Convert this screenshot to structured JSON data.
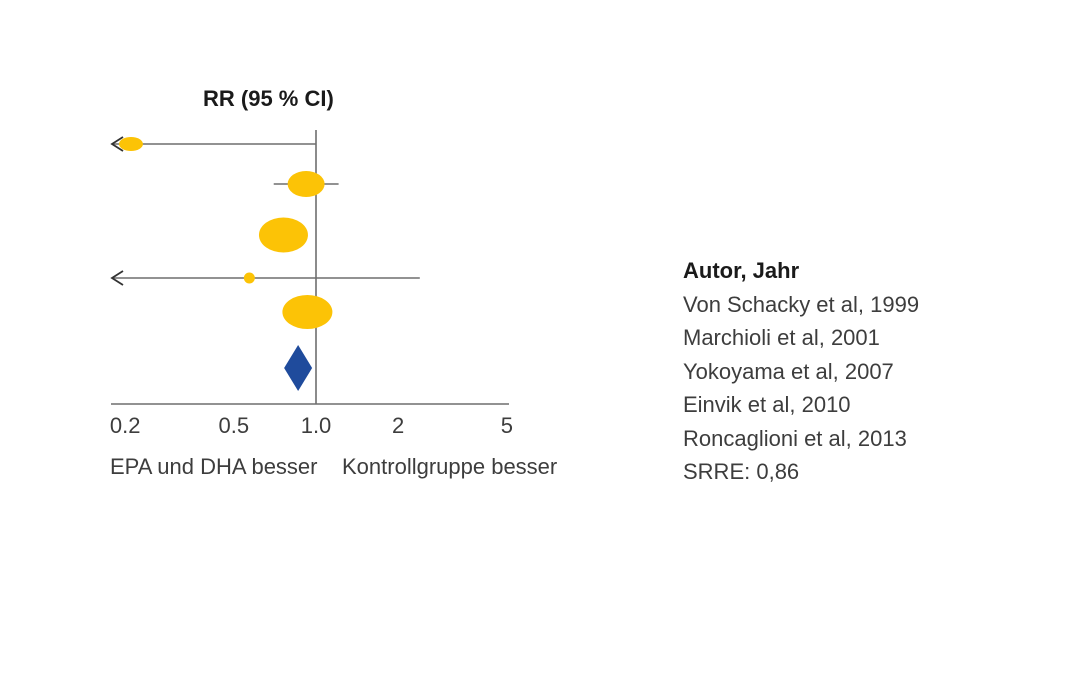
{
  "title": "RR (95 % CI)",
  "axis": {
    "left_label": "EPA und DHA besser",
    "right_label": "Kontrollgruppe besser"
  },
  "legend": {
    "header": "Autor, Jahr",
    "items": [
      "Von Schacky et al, 1999",
      "Marchioli et al, 2001",
      "Yokoyama et al, 2007",
      "Einvik et al, 2010",
      "Roncaglioni et al, 2013",
      "SRRE: 0,86"
    ]
  },
  "colors": {
    "marker_yellow": "#fcc306",
    "summary_blue": "#1f4b9c",
    "line_gray": "#6e6e6e",
    "arrow_dark": "#333333",
    "text_dark": "#3d3d3d",
    "title_black": "#1a1a1a"
  },
  "chart_data": {
    "type": "scatter",
    "subtype": "forest-plot",
    "title": "RR (95 % CI)",
    "x_scale": "log",
    "x_range": [
      0.2,
      5
    ],
    "x_ticks": [
      0.2,
      0.5,
      1.0,
      2,
      5
    ],
    "x_tick_labels": [
      "0.2",
      "0.5",
      "1.0",
      "2",
      "5"
    ],
    "xlabel_left": "EPA und DHA besser",
    "xlabel_right": "Kontrollgruppe besser",
    "ref_line_x": 1.0,
    "grid": false,
    "legend_position": "right",
    "studies": [
      {
        "label": "Von Schacky et al, 1999",
        "rr": 0.21,
        "ci_low": null,
        "ci_low_off_scale": true,
        "ci_high": 1.0,
        "marker_w": 24,
        "marker_h": 14
      },
      {
        "label": "Marchioli et al, 2001",
        "rr": 0.92,
        "ci_low": 0.7,
        "ci_low_off_scale": false,
        "ci_high": 1.21,
        "marker_w": 37,
        "marker_h": 26
      },
      {
        "label": "Yokoyama et al, 2007",
        "rr": 0.76,
        "ci_low": null,
        "ci_low_off_scale": false,
        "ci_high": null,
        "ci_within_marker": true,
        "marker_w": 49,
        "marker_h": 35
      },
      {
        "label": "Einvik et al, 2010",
        "rr": 0.57,
        "ci_low": null,
        "ci_low_off_scale": true,
        "ci_high": 2.4,
        "marker_w": 11,
        "marker_h": 11
      },
      {
        "label": "Roncaglioni et al, 2013",
        "rr": 0.93,
        "ci_low": null,
        "ci_low_off_scale": false,
        "ci_high": null,
        "ci_within_marker": true,
        "marker_w": 50,
        "marker_h": 34
      }
    ],
    "summary": {
      "label": "SRRE: 0,86",
      "rr": 0.86,
      "marker": "diamond",
      "marker_w": 28,
      "marker_h": 46
    }
  }
}
